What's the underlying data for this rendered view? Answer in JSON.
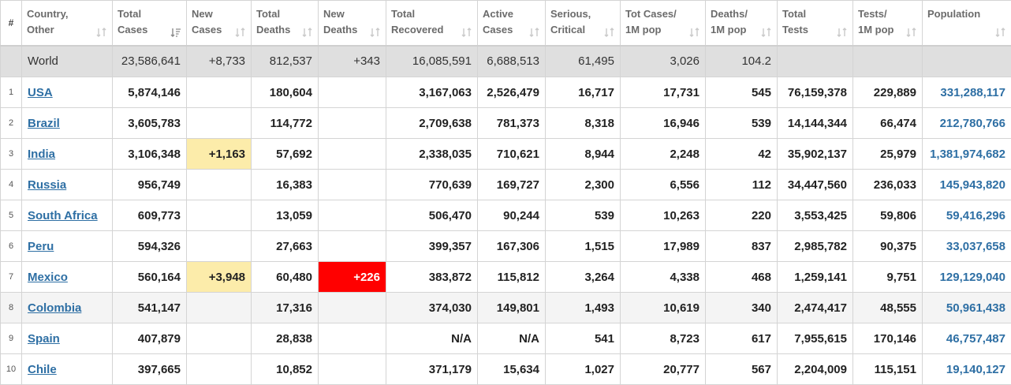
{
  "header": {
    "hash": "#",
    "columns": [
      {
        "key": "country",
        "line1": "Country,",
        "line2": "Other",
        "sort_icon": "sort-icon"
      },
      {
        "key": "total_cases",
        "line1": "Total",
        "line2": "Cases",
        "sort_icon": "sort-desc-icon"
      },
      {
        "key": "new_cases",
        "line1": "New",
        "line2": "Cases",
        "sort_icon": "sort-icon"
      },
      {
        "key": "total_deaths",
        "line1": "Total",
        "line2": "Deaths",
        "sort_icon": "sort-icon"
      },
      {
        "key": "new_deaths",
        "line1": "New",
        "line2": "Deaths",
        "sort_icon": "sort-icon"
      },
      {
        "key": "total_recovered",
        "line1": "Total",
        "line2": "Recovered",
        "sort_icon": "sort-icon"
      },
      {
        "key": "active_cases",
        "line1": "Active",
        "line2": "Cases",
        "sort_icon": "sort-icon"
      },
      {
        "key": "serious_critical",
        "line1": "Serious,",
        "line2": "Critical",
        "sort_icon": "sort-icon"
      },
      {
        "key": "tot_cases_1m",
        "line1": "Tot Cases/",
        "line2": "1M pop",
        "sort_icon": "sort-icon"
      },
      {
        "key": "deaths_1m",
        "line1": "Deaths/",
        "line2": "1M pop",
        "sort_icon": "sort-icon"
      },
      {
        "key": "total_tests",
        "line1": "Total",
        "line2": "Tests",
        "sort_icon": "sort-icon"
      },
      {
        "key": "tests_1m",
        "line1": "Tests/",
        "line2": "1M pop",
        "sort_icon": "sort-icon"
      },
      {
        "key": "population",
        "line1": "Population",
        "line2": "",
        "sort_icon": "sort-icon"
      }
    ]
  },
  "world": {
    "country": "World",
    "total_cases": "23,586,641",
    "new_cases": "+8,733",
    "total_deaths": "812,537",
    "new_deaths": "+343",
    "total_recovered": "16,085,591",
    "active_cases": "6,688,513",
    "serious_critical": "61,495",
    "tot_cases_1m": "3,026",
    "deaths_1m": "104.2",
    "total_tests": "",
    "tests_1m": "",
    "population": ""
  },
  "rows": [
    {
      "rank": "1",
      "country": "USA",
      "total_cases": "5,874,146",
      "new_cases": "",
      "total_deaths": "180,604",
      "new_deaths": "",
      "total_recovered": "3,167,063",
      "active_cases": "2,526,479",
      "serious_critical": "16,717",
      "tot_cases_1m": "17,731",
      "deaths_1m": "545",
      "total_tests": "76,159,378",
      "tests_1m": "229,889",
      "population": "331,288,117"
    },
    {
      "rank": "2",
      "country": "Brazil",
      "total_cases": "3,605,783",
      "new_cases": "",
      "total_deaths": "114,772",
      "new_deaths": "",
      "total_recovered": "2,709,638",
      "active_cases": "781,373",
      "serious_critical": "8,318",
      "tot_cases_1m": "16,946",
      "deaths_1m": "539",
      "total_tests": "14,144,344",
      "tests_1m": "66,474",
      "population": "212,780,766"
    },
    {
      "rank": "3",
      "country": "India",
      "total_cases": "3,106,348",
      "new_cases": "+1,163",
      "total_deaths": "57,692",
      "new_deaths": "",
      "total_recovered": "2,338,035",
      "active_cases": "710,621",
      "serious_critical": "8,944",
      "tot_cases_1m": "2,248",
      "deaths_1m": "42",
      "total_tests": "35,902,137",
      "tests_1m": "25,979",
      "population": "1,381,974,682"
    },
    {
      "rank": "4",
      "country": "Russia",
      "total_cases": "956,749",
      "new_cases": "",
      "total_deaths": "16,383",
      "new_deaths": "",
      "total_recovered": "770,639",
      "active_cases": "169,727",
      "serious_critical": "2,300",
      "tot_cases_1m": "6,556",
      "deaths_1m": "112",
      "total_tests": "34,447,560",
      "tests_1m": "236,033",
      "population": "145,943,820"
    },
    {
      "rank": "5",
      "country": "South Africa",
      "total_cases": "609,773",
      "new_cases": "",
      "total_deaths": "13,059",
      "new_deaths": "",
      "total_recovered": "506,470",
      "active_cases": "90,244",
      "serious_critical": "539",
      "tot_cases_1m": "10,263",
      "deaths_1m": "220",
      "total_tests": "3,553,425",
      "tests_1m": "59,806",
      "population": "59,416,296"
    },
    {
      "rank": "6",
      "country": "Peru",
      "total_cases": "594,326",
      "new_cases": "",
      "total_deaths": "27,663",
      "new_deaths": "",
      "total_recovered": "399,357",
      "active_cases": "167,306",
      "serious_critical": "1,515",
      "tot_cases_1m": "17,989",
      "deaths_1m": "837",
      "total_tests": "2,985,782",
      "tests_1m": "90,375",
      "population": "33,037,658"
    },
    {
      "rank": "7",
      "country": "Mexico",
      "total_cases": "560,164",
      "new_cases": "+3,948",
      "total_deaths": "60,480",
      "new_deaths": "+226",
      "total_recovered": "383,872",
      "active_cases": "115,812",
      "serious_critical": "3,264",
      "tot_cases_1m": "4,338",
      "deaths_1m": "468",
      "total_tests": "1,259,141",
      "tests_1m": "9,751",
      "population": "129,129,040"
    },
    {
      "rank": "8",
      "country": "Colombia",
      "total_cases": "541,147",
      "new_cases": "",
      "total_deaths": "17,316",
      "new_deaths": "",
      "total_recovered": "374,030",
      "active_cases": "149,801",
      "serious_critical": "1,493",
      "tot_cases_1m": "10,619",
      "deaths_1m": "340",
      "total_tests": "2,474,417",
      "tests_1m": "48,555",
      "population": "50,961,438"
    },
    {
      "rank": "9",
      "country": "Spain",
      "total_cases": "407,879",
      "new_cases": "",
      "total_deaths": "28,838",
      "new_deaths": "",
      "total_recovered": "N/A",
      "active_cases": "N/A",
      "serious_critical": "541",
      "tot_cases_1m": "8,723",
      "deaths_1m": "617",
      "total_tests": "7,955,615",
      "tests_1m": "170,146",
      "population": "46,757,487"
    },
    {
      "rank": "10",
      "country": "Chile",
      "total_cases": "397,665",
      "new_cases": "",
      "total_deaths": "10,852",
      "new_deaths": "",
      "total_recovered": "371,179",
      "active_cases": "15,634",
      "serious_critical": "1,027",
      "tot_cases_1m": "20,777",
      "deaths_1m": "567",
      "total_tests": "2,204,009",
      "tests_1m": "115,151",
      "population": "19,140,127"
    }
  ],
  "colors": {
    "link": "#2e6fa4",
    "new_cases_highlight": "#fcecaa",
    "new_deaths_highlight": "#ff0000",
    "world_row_bg": "#dfdfdf"
  }
}
